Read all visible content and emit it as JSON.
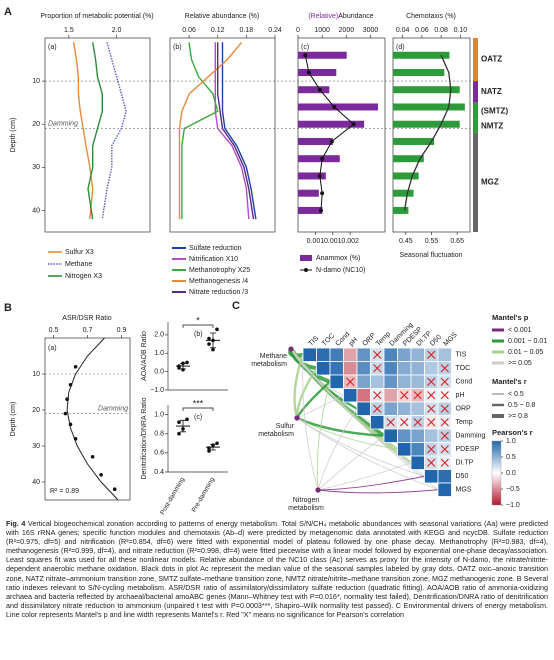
{
  "panel_a": {
    "label": "A",
    "depth_label": "Depth (cm)",
    "ylim": [
      0,
      45
    ],
    "yticks": [
      10,
      20,
      30,
      40
    ],
    "boundaries": [
      10,
      21
    ],
    "damming": "Damming",
    "a": {
      "tag": "(a)",
      "title": "Proportion of metabolic potential (%)",
      "xlim": [
        1.25,
        2.35
      ],
      "xticks": [
        1.5,
        {
          "value": 2,
          "label": "2.0"
        }
      ],
      "depth": [
        1,
        5,
        9,
        13,
        17,
        21,
        25,
        30,
        35,
        42
      ],
      "series": [
        {
          "name": "Sulfur X3",
          "color": "#e58a3c",
          "line_style": "solid",
          "values": [
            1.55,
            1.58,
            1.6,
            1.6,
            1.62,
            1.65,
            1.68,
            1.72,
            1.75,
            1.72
          ]
        },
        {
          "name": "Methane",
          "color": "#5b5bc8",
          "line_style": "dotted",
          "values": [
            1.9,
            1.95,
            2.0,
            2.05,
            2.1,
            2.05,
            1.95,
            1.95,
            1.9,
            1.85
          ]
        },
        {
          "name": "Nitrogen X3",
          "color": "#2e8b3a",
          "line_style": "solid",
          "values": [
            1.75,
            1.78,
            1.8,
            1.85,
            1.85,
            1.8,
            1.75,
            1.75,
            1.7,
            1.75
          ]
        }
      ]
    },
    "b": {
      "tag": "(b)",
      "title": "Relative abundance (%)",
      "xlim": [
        0.02,
        0.24
      ],
      "xticks": [
        0.06,
        0.12,
        0.18,
        0.24
      ],
      "depth": [
        1,
        5,
        9,
        13,
        17,
        21,
        25,
        30,
        35,
        42
      ],
      "series": [
        {
          "name": "Sulfate reduction",
          "color": "#1f3fa8",
          "values": [
            0.13,
            0.13,
            0.13,
            0.13,
            0.13,
            0.135,
            0.16,
            0.18,
            0.19,
            0.2
          ]
        },
        {
          "name": "Nitrification X10",
          "color": "#b04fc4",
          "values": [
            0.115,
            0.115,
            0.115,
            0.115,
            0.115,
            0.12,
            0.15,
            0.17,
            0.18,
            0.185
          ]
        },
        {
          "name": "Methanotrophy X25",
          "color": "#3aa83a",
          "values": [
            0.06,
            0.065,
            0.08,
            0.11,
            0.12,
            0.05,
            0.045,
            0.045,
            0.045,
            0.045
          ]
        },
        {
          "name": "Methanogenesis /4",
          "color": "#e58a3c",
          "values": [
            0.17,
            0.14,
            0.1,
            0.06,
            0.045,
            0.04,
            0.04,
            0.04,
            0.04,
            0.04
          ]
        },
        {
          "name": "Nitrate reduction /3",
          "color": "#5a2a82",
          "values": [
            0.12,
            0.12,
            0.12,
            0.12,
            0.125,
            0.13,
            0.155,
            0.175,
            0.185,
            0.195
          ]
        }
      ]
    },
    "c": {
      "tag": "(c)",
      "title_prefix": "(Relative)",
      "title": "Abundance",
      "xlim": [
        0,
        3600
      ],
      "xticks": [
        0,
        1000,
        2000,
        3000
      ],
      "x2lim": [
        0,
        0.0025
      ],
      "x2ticks": [
        {
          "value": 0.0005,
          "label": "0.001"
        },
        {
          "value": 0.001,
          "label": "0.001"
        },
        {
          "value": 0.0015,
          "label": "0.002"
        }
      ],
      "depth": [
        4,
        8,
        12,
        16,
        20,
        24,
        28,
        32,
        36,
        40
      ],
      "bar_name": "Anammox (%)",
      "bar_color": "#7b2a9b",
      "bars": [
        0.0014,
        0.0011,
        0.0009,
        0.0023,
        0.0019,
        0.001,
        0.0012,
        0.0008,
        0.0006,
        0.0007
      ],
      "line_name": "N-damo (NC10)",
      "line_color": "#111111",
      "line": [
        300,
        450,
        900,
        1500,
        2300,
        1400,
        1000,
        900,
        1000,
        950
      ]
    },
    "d": {
      "tag": "(d)",
      "title": "Chemotaxis (%)",
      "xlim": [
        0.03,
        0.11
      ],
      "xticks": [
        0.04,
        0.06,
        0.08,
        {
          "value": 0.1,
          "label": "0.10"
        }
      ],
      "x2lim": [
        0.4,
        0.7
      ],
      "x2ticks": [
        0.45,
        0.55,
        0.65
      ],
      "x2_label": "Seasonal fluctuation",
      "bar_color": "#2e9b3a",
      "depth": [
        4,
        8,
        12,
        16,
        20,
        24,
        28,
        32,
        36,
        40
      ],
      "bars": [
        0.62,
        0.6,
        0.66,
        0.68,
        0.66,
        0.56,
        0.52,
        0.5,
        0.48,
        0.46
      ],
      "curve": [
        0.08,
        0.088,
        0.09,
        0.088,
        0.08,
        0.07,
        0.058,
        0.05,
        0.045,
        0.042
      ]
    },
    "zones": [
      {
        "name": "OATZ",
        "color": "#e8841f",
        "range": [
          0,
          10
        ]
      },
      {
        "name": "NATZ",
        "color": "#7b2a9b",
        "range": [
          10,
          15
        ]
      },
      {
        "name": "(SMTZ)",
        "color": "#2e9b3a",
        "range": [
          15,
          19
        ]
      },
      {
        "name": "NMTZ",
        "color": "#2e9b3a",
        "range": [
          19,
          22
        ]
      },
      {
        "name": "MGZ",
        "color": "#666666",
        "range": [
          22,
          45
        ]
      }
    ]
  },
  "panel_b": {
    "label": "B",
    "depth_label": "Depth (cm)",
    "ylim": [
      0,
      45
    ],
    "yticks": [
      10,
      20,
      30,
      40
    ],
    "boundaries": [
      10,
      21
    ],
    "damming": "Damming",
    "a": {
      "tag": "(a)",
      "title": "ASR/DSR Ratio",
      "xlim": [
        0.45,
        0.95
      ],
      "xticks": [
        0.5,
        0.7,
        0.9
      ],
      "depth": [
        8,
        13,
        17,
        21,
        24,
        28,
        33,
        38,
        42
      ],
      "values": [
        0.63,
        0.6,
        0.58,
        0.57,
        0.6,
        0.63,
        0.73,
        0.78,
        0.86
      ],
      "fit_depth": [
        0,
        5,
        10,
        15,
        20,
        25,
        30,
        35,
        40,
        45
      ],
      "fit_values": [
        0.8,
        0.7,
        0.63,
        0.59,
        0.58,
        0.6,
        0.64,
        0.7,
        0.78,
        0.88
      ],
      "r2": "R² = 0.89"
    },
    "b": {
      "tag": "(b)",
      "ylabel": "AOA/AOB Ratio",
      "ylim": [
        -1,
        2.7
      ],
      "yticks": [
        {
          "value": -1,
          "label": "−1.0"
        },
        {
          "value": 0,
          "label": "0.0"
        },
        {
          "value": 1,
          "label": "1.0"
        },
        {
          "value": 2,
          "label": "2.0"
        }
      ],
      "groups": [
        {
          "values": [
            0.3,
            0.1,
            0.5,
            0.2,
            0.45
          ],
          "mean": 0.3,
          "error": 0.15
        },
        {
          "values": [
            1.8,
            1.2,
            2.3,
            1.5,
            1.7
          ],
          "mean": 1.7,
          "error": 0.4
        }
      ],
      "significance": "*"
    },
    "c": {
      "tag": "(c)",
      "ylabel": "Denitrification/DNRA Ratio",
      "ylim": [
        0.4,
        1.1
      ],
      "yticks": [
        0.4,
        0.6,
        0.8,
        {
          "value": 1,
          "label": "1.0"
        }
      ],
      "groups": [
        {
          "values": [
            0.92,
            0.85,
            0.95,
            0.8
          ],
          "mean": 0.88,
          "error": 0.06
        },
        {
          "values": [
            0.65,
            0.68,
            0.7,
            0.62
          ],
          "mean": 0.66,
          "error": 0.03
        }
      ],
      "significance": "***"
    },
    "categories": [
      "Post-damming",
      "Pre-damming"
    ]
  },
  "panel_c": {
    "label": "C",
    "variables": [
      "TIS",
      "TOC",
      "Cond",
      "pH",
      "ORP",
      "Temp",
      "Damming",
      "PDESP",
      "DI.TP",
      "D50",
      "MGS"
    ],
    "matrix": [
      [
        1,
        0.95,
        0.85,
        -0.4,
        0.7,
        0.2,
        0.8,
        0.6,
        0.5,
        0.3,
        0.4
      ],
      [
        1,
        0.9,
        -0.5,
        0.75,
        0.25,
        0.8,
        0.55,
        0.5,
        0.35,
        0.3
      ],
      [
        1,
        -0.3,
        0.6,
        0.4,
        0.7,
        0.5,
        0.45,
        0.3,
        0.2
      ],
      [
        1,
        -0.6,
        0.1,
        -0.4,
        -0.2,
        -0.3,
        0.1,
        0.05
      ],
      [
        1,
        0.3,
        0.6,
        0.5,
        0.4,
        0.2,
        0.3
      ],
      [
        1,
        0.2,
        0.1,
        0.3,
        -0.1,
        0.1
      ],
      [
        1,
        0.7,
        0.6,
        0.4,
        0.3
      ],
      [
        1,
        0.8,
        0.3,
        0.2
      ],
      [
        1,
        0.2,
        0.1
      ],
      [
        1,
        0.95
      ],
      [
        1
      ]
    ],
    "crossed": [
      [
        0,
        0,
        0,
        0,
        0,
        1,
        0,
        0,
        0,
        1,
        0
      ],
      [
        0,
        0,
        0,
        0,
        1,
        0,
        0,
        0,
        0,
        1
      ],
      [
        0,
        1,
        0,
        0,
        0,
        0,
        0,
        1,
        1
      ],
      [
        0,
        0,
        1,
        0,
        1,
        1,
        1,
        1
      ],
      [
        0,
        1,
        0,
        0,
        0,
        1,
        1
      ],
      [
        0,
        1,
        1,
        1,
        1,
        1
      ],
      [
        0,
        0,
        0,
        0,
        1
      ],
      [
        0,
        0,
        1,
        1
      ],
      [
        0,
        1,
        1
      ],
      [
        0,
        0
      ],
      [
        0
      ]
    ],
    "nodes": [
      {
        "lines": [
          "Methane",
          "metabolism"
        ]
      },
      {
        "lines": [
          "Sulfur",
          "metabolism"
        ]
      },
      {
        "lines": [
          "Nitrogen",
          "metabolism"
        ]
      }
    ],
    "links": [
      [
        0,
        0,
        1,
        2
      ],
      [
        0,
        1,
        1,
        2
      ],
      [
        0,
        2,
        1,
        2
      ],
      [
        0,
        4,
        1,
        1
      ],
      [
        0,
        6,
        1,
        2
      ],
      [
        0,
        7,
        2,
        1
      ],
      [
        0,
        8,
        2,
        1
      ],
      [
        0,
        3,
        3,
        0
      ],
      [
        0,
        5,
        3,
        0
      ],
      [
        0,
        9,
        3,
        0
      ],
      [
        0,
        10,
        3,
        0
      ],
      [
        1,
        0,
        2,
        1
      ],
      [
        1,
        1,
        2,
        1
      ],
      [
        1,
        2,
        1,
        1
      ],
      [
        1,
        6,
        1,
        1
      ],
      [
        1,
        7,
        2,
        0
      ],
      [
        1,
        3,
        3,
        0
      ],
      [
        1,
        9,
        3,
        0
      ],
      [
        1,
        10,
        3,
        0
      ],
      [
        2,
        0,
        3,
        0
      ],
      [
        2,
        2,
        2,
        0
      ],
      [
        2,
        6,
        3,
        0
      ],
      [
        2,
        8,
        3,
        0
      ],
      [
        2,
        9,
        0,
        0
      ],
      [
        2,
        10,
        0,
        0
      ],
      [
        2,
        4,
        3,
        0
      ]
    ],
    "mantel_p": {
      "title": "Mantel's p",
      "items": [
        {
          "label": "< 0.001",
          "color": "#7b2a7b"
        },
        {
          "label": "0.001 ~ 0.01",
          "color": "#2e9b3a"
        },
        {
          "label": "0.01 ~ 0.05",
          "color": "#a8d08d"
        },
        {
          "label": ">= 0.05",
          "color": "#cccccc"
        }
      ]
    },
    "mantel_r": {
      "title": "Mantel's r",
      "items": [
        "< 0.5",
        "0.5 ~ 0.8",
        ">= 0.8"
      ]
    },
    "pearson": {
      "title": "Pearson's r",
      "lim": [
        -1,
        1
      ],
      "ticks": [
        {
          "value": 1,
          "label": "1.0"
        },
        0.5,
        {
          "value": 0,
          "label": "0.0"
        },
        {
          "value": -0.5,
          "label": "−0.5"
        },
        {
          "value": -1,
          "label": "−1.0"
        }
      ]
    }
  },
  "caption": {
    "label": "Fig. 4",
    "text": "Vertical biogeochemical zonation according to patterns of energy metabolism. Total S/N/CH₄ metabolic abundances with seasonal variations (Aa) were predicted with 16S rRNA genes; specific function modules and chemotaxis (Ab–d) were predicted by metagenomic data annotated with KEGG and ncycDB. Sulfate reduction (R²=0.975, df=5) and nitrification (R²=0.854, df=6) were fitted with exponential model of plateau followed by one phase decay. Methanotrophy (R²=0.983, df=4), methanogenesis (R²=0.999, df=4), and nitrate reduction (R²=0.998, df=4) were fitted piecewise with a linear model followed by exponential one-phase decay/association. Least squares fit was used for all these nonlinear models. Relative abundance of the NC10 class (Ac) serves as proxy for the intensity of N-damo, the nitrate/nitrite-dependent anaerobic methane oxidation. Black dots in plot Ac represent the median value of the seasonal samples labeled by gray dots. OATZ oxic–anoxic transition zone, NATZ nitrate–ammonium transition zone, SMTZ sulfate–methane transition zone, NMTZ nitrate/nitrite–methane transition zone, MGZ methanogenic zone. B Several ratio indexes relevant to S/N-cycling metabolism. ASR/DSR ratio of assimilatory/dissimilatory sulfate reduction (quadratic fitting). AOA/AOB ratio of ammonia-oxidizing archaea and bacteria reflected by archaeal/bacterial amoABC genes (Mann–Whitney test with P=0.016*, normality test failed), Denitrification/DNRA ratio of denitrification and dissimilatory nitrate reduction to ammonium (unpaired t test with P=0.0003***, Shapiro–Wilk normality test passed). C Environmental drivers of energy metabolism. Line color represents Mantel's p and line width represents Mantel's r. Red \"X\" means no significance for Pearson's correlation"
  }
}
